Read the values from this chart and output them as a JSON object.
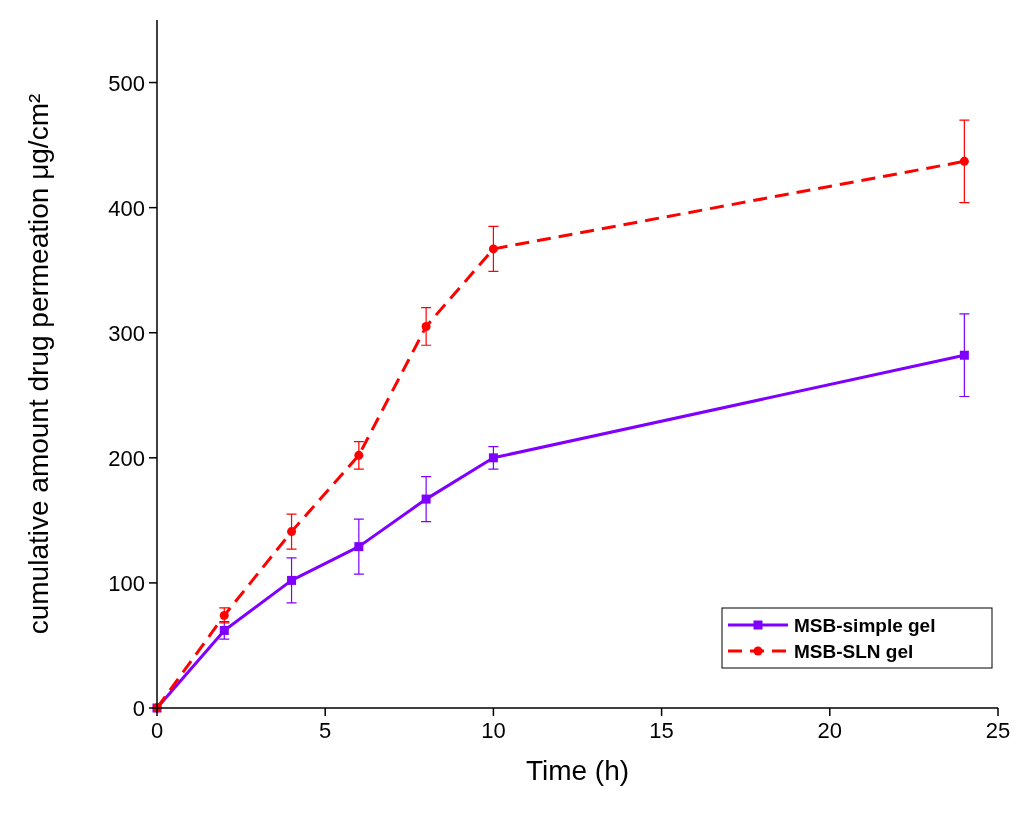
{
  "chart_data": {
    "type": "line",
    "xlabel": "Time (h)",
    "ylabel": "cumulative amount drug permeation μg/cm²",
    "x": [
      0,
      2,
      4,
      6,
      8,
      10,
      24
    ],
    "xlim": [
      0,
      25
    ],
    "xticks": [
      0,
      5,
      10,
      15,
      20,
      25
    ],
    "ylim": [
      0,
      550
    ],
    "yticks": [
      0,
      100,
      200,
      300,
      400,
      500
    ],
    "legend": "bottom right",
    "grid": false,
    "series": [
      {
        "name": "MSB-simple gel",
        "color": "#8000ff",
        "values": [
          0,
          62,
          102,
          129,
          167,
          200,
          282
        ],
        "errors": [
          null,
          7,
          18,
          22,
          18,
          9,
          33
        ],
        "marker": "square",
        "line_style": "solid"
      },
      {
        "name": "MSB-SLN gel",
        "color": "#ff0000",
        "values": [
          0,
          74,
          141,
          202,
          305,
          367,
          437
        ],
        "errors": [
          null,
          6,
          14,
          11,
          15,
          18,
          33
        ],
        "marker": "circle",
        "line_style": "dashed"
      }
    ]
  }
}
